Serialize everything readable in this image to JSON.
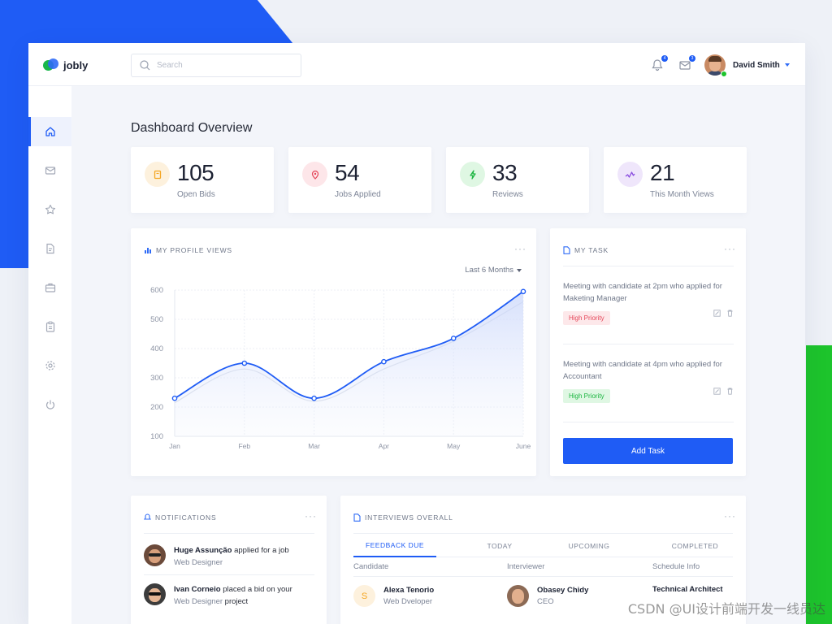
{
  "app": {
    "name": "jobly"
  },
  "header": {
    "search_placeholder": "Search",
    "notifications_count": "4",
    "messages_count": "3",
    "user_name": "David Smith"
  },
  "sidebar": {
    "items": [
      {
        "icon": "home-icon",
        "active": true
      },
      {
        "icon": "mail-icon"
      },
      {
        "icon": "star-icon"
      },
      {
        "icon": "document-icon"
      },
      {
        "icon": "briefcase-icon"
      },
      {
        "icon": "clipboard-icon"
      },
      {
        "icon": "gear-icon"
      },
      {
        "icon": "power-icon"
      }
    ]
  },
  "page": {
    "title": "Dashboard Overview"
  },
  "stats": [
    {
      "value": "105",
      "label": "Open Bids",
      "icon": "bookmark-icon",
      "color": "#f5a623",
      "bg": "#fdf1dd"
    },
    {
      "value": "54",
      "label": "Jobs Applied",
      "icon": "pin-icon",
      "color": "#e5475a",
      "bg": "#fde6e9"
    },
    {
      "value": "33",
      "label": "Reviews",
      "icon": "bolt-icon",
      "color": "#1bb540",
      "bg": "#dff7e3"
    },
    {
      "value": "21",
      "label": "This Month Views",
      "icon": "pulse-icon",
      "color": "#8a4de0",
      "bg": "#efe6fb"
    }
  ],
  "profile_views": {
    "title": "MY PROFILE VIEWS",
    "range_label": "Last 6 Months"
  },
  "chart_data": {
    "type": "line",
    "title": "MY PROFILE VIEWS",
    "categories": [
      "Jan",
      "Feb",
      "Mar",
      "Apr",
      "May",
      "June"
    ],
    "x": [
      "Jan",
      "Feb",
      "Mar",
      "Apr",
      "May",
      "June"
    ],
    "series": [
      {
        "name": "",
        "values": [
          230,
          350,
          230,
          355,
          435,
          595
        ],
        "color": "#1f5cf5"
      },
      {
        "name": "",
        "values": [
          215,
          330,
          220,
          330,
          425,
          560
        ],
        "color": "#d7dce6"
      }
    ],
    "yticks": [
      600,
      500,
      400,
      300,
      200,
      100
    ],
    "ylim": [
      100,
      600
    ],
    "grid": true
  },
  "my_task": {
    "title": "MY TASK",
    "tasks": [
      {
        "text": "Meeting with candidate at 2pm who applied for Maketing Manager",
        "priority": "High Priority",
        "level": "red"
      },
      {
        "text": "Meeting with candidate at 4pm who applied for Accountant",
        "priority": "High Priority",
        "level": "green"
      }
    ],
    "add_label": "Add Task"
  },
  "notifications": {
    "title": "NOTIFICATIONS",
    "items": [
      {
        "name": "Huge Assunção",
        "action": "applied for a job",
        "sub": "Web Designer",
        "suffix": ""
      },
      {
        "name": "Ivan Corneio",
        "action": "placed a bid on your",
        "sub": "Web Designer",
        "suffix": "project"
      }
    ]
  },
  "interviews": {
    "title": "INTERVIEWS OVERALL",
    "tabs": [
      "FEEDBACK DUE",
      "TODAY",
      "UPCOMING",
      "COMPLETED"
    ],
    "columns": [
      "Candidate",
      "Interviewer",
      "Schedule Info"
    ],
    "rows": [
      {
        "candidate_initial": "S",
        "candidate": "Alexa Tenorio",
        "candidate_role": "Web Dveloper",
        "interviewer": "Obasey Chidy",
        "interviewer_role": "CEO",
        "schedule": "Technical Architect"
      }
    ]
  },
  "watermark": "CSDN @UI设计前端开发一线员达"
}
